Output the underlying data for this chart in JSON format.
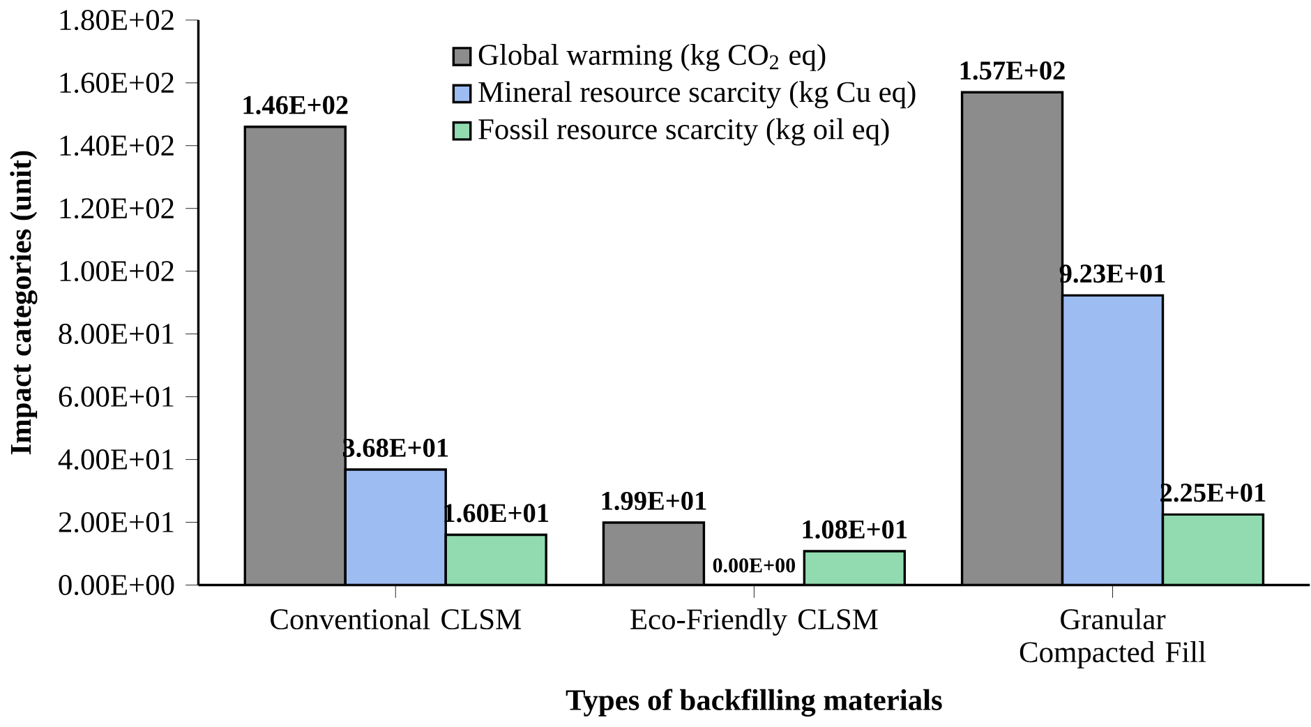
{
  "chart_data": {
    "type": "bar",
    "xlabel": "Types of backfilling materials",
    "ylabel": "Impact categories (unit)",
    "categories": [
      "Conventional CLSM",
      "Eco-Friendly CLSM",
      "Granular Compacted Fill"
    ],
    "series": [
      {
        "name": "Global warming  (kg CO$_{2}$ eq)",
        "color": "#8c8c8c",
        "values": [
          146,
          19.9,
          157
        ],
        "value_labels": [
          "1.46E+02",
          "1.99E+01",
          "1.57E+02"
        ]
      },
      {
        "name": "Mineral resource scarcity (kg Cu eq)",
        "color": "#9dbdf2",
        "values": [
          36.8,
          0,
          92.3
        ],
        "value_labels": [
          "3.68E+01",
          "0.00E+00",
          "9.23E+01"
        ]
      },
      {
        "name": "Fossil resource scarcity (kg oil eq)",
        "color": "#92dbb0",
        "values": [
          16.0,
          10.8,
          22.5
        ],
        "value_labels": [
          "1.60E+01",
          "1.08E+01",
          "2.25E+01"
        ]
      }
    ],
    "ylim": [
      0,
      180
    ],
    "yticks": [
      {
        "value": 0,
        "label": "0.00E+00"
      },
      {
        "value": 20,
        "label": "2.00E+01"
      },
      {
        "value": 40,
        "label": "4.00E+01"
      },
      {
        "value": 60,
        "label": "6.00E+01"
      },
      {
        "value": 80,
        "label": "8.00E+01"
      },
      {
        "value": 100,
        "label": "1.00E+02"
      },
      {
        "value": 120,
        "label": "1.20E+02"
      },
      {
        "value": 140,
        "label": "1.40E+02"
      },
      {
        "value": 160,
        "label": "1.60E+02"
      },
      {
        "value": 180,
        "label": "1.80E+02"
      }
    ],
    "legend": "top",
    "grid": false
  }
}
